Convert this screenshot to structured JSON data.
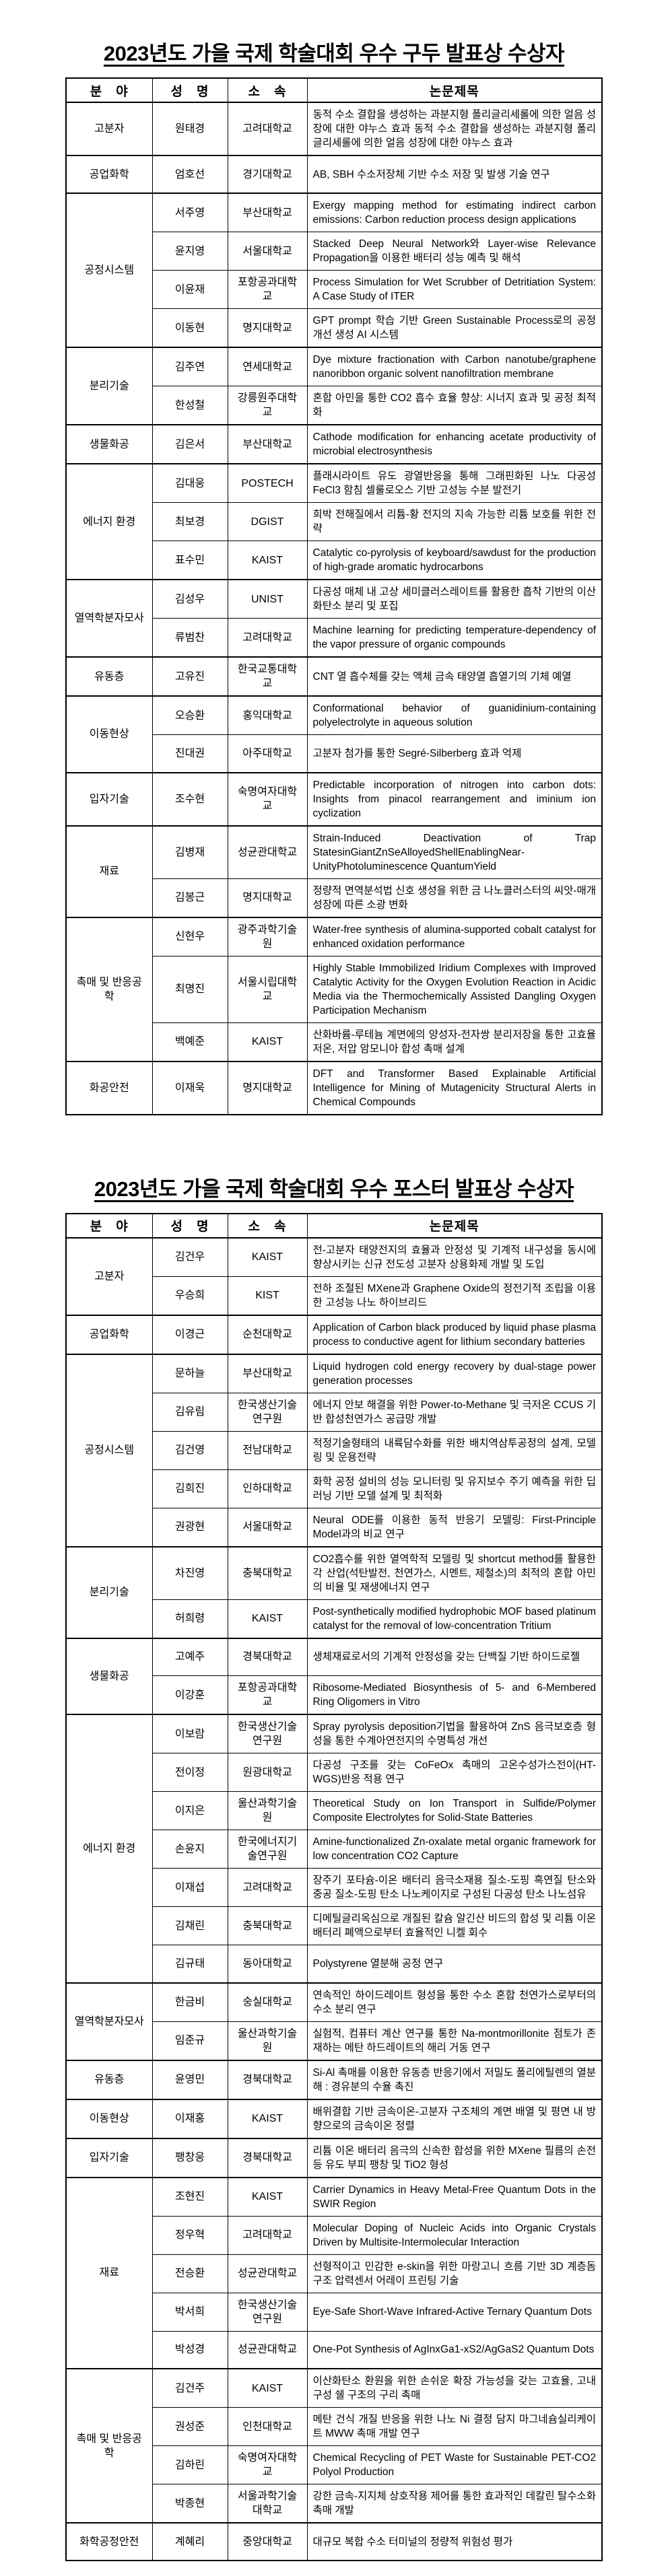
{
  "titles": {
    "oral": "2023년도 가을 국제 학술대회 우수 구두 발표상 수상자",
    "poster": "2023년도 가을 국제 학술대회 우수 포스터 발표상 수상자"
  },
  "headers": {
    "field": "분　야",
    "name": "성　명",
    "affiliation": "소　속",
    "title": "논문제목"
  },
  "oral_table": {
    "groups": [
      {
        "field": "고분자",
        "rows": [
          {
            "name": "원태경",
            "affiliation": "고려대학교",
            "title": "동적 수소 결합을 생성하는 과분지형 폴리글리세롤에 의한 얼음 성장에 대한 야누스 효과 동적 수소 결합을 생성하는 과분지형 폴리글리세롤에 의한 얼음 성장에 대한 야누스 효과"
          }
        ]
      },
      {
        "field": "공업화학",
        "rows": [
          {
            "name": "엄호선",
            "affiliation": "경기대학교",
            "title": "AB, SBH 수소저장체 기반 수소 저장 및 발생 기술 연구"
          }
        ]
      },
      {
        "field": "공정시스템",
        "rows": [
          {
            "name": "서주영",
            "affiliation": "부산대학교",
            "title": "Exergy mapping method for estimating indirect carbon emissions: Carbon reduction process design applications"
          },
          {
            "name": "윤지영",
            "affiliation": "서울대학교",
            "title": "Stacked Deep Neural Network와 Layer-wise Relevance Propagation을 이용한 배터리 성능 예측 및 해석"
          },
          {
            "name": "이윤재",
            "affiliation": "포항공과대학교",
            "title": "Process Simulation for Wet Scrubber of Detritiation System: A Case Study of ITER"
          },
          {
            "name": "이동현",
            "affiliation": "명지대학교",
            "title": "GPT prompt 학습 기반 Green Sustainable Process로의 공정 개선 생성 AI 시스템"
          }
        ]
      },
      {
        "field": "분리기술",
        "rows": [
          {
            "name": "김주연",
            "affiliation": "연세대학교",
            "title": "Dye mixture fractionation with Carbon nanotube/graphene nanoribbon organic solvent nanofiltration membrane"
          },
          {
            "name": "한성철",
            "affiliation": "강릉원주대학교",
            "title": "혼합 아민을 통한 CO2 흡수 효율 향상: 시너지 효과 및 공정 최적화"
          }
        ]
      },
      {
        "field": "생물화공",
        "rows": [
          {
            "name": "김은서",
            "affiliation": "부산대학교",
            "title": "Cathode modification for enhancing acetate productivity of microbial electrosynthesis"
          }
        ]
      },
      {
        "field": "에너지 환경",
        "rows": [
          {
            "name": "김대웅",
            "affiliation": "POSTECH",
            "title": "플래시라이트 유도 광열반응을 통해 그래핀화된 나노 다공성 FeCl3 함침 셀룰로오스 기반 고성능 수분 발전기"
          },
          {
            "name": "최보경",
            "affiliation": "DGIST",
            "title": "희박 전해질에서 리튬-황 전지의 지속 가능한 리튬 보호를 위한 전략"
          },
          {
            "name": "표수민",
            "affiliation": "KAIST",
            "title": "Catalytic co-pyrolysis of keyboard/sawdust for the production of high-grade aromatic hydrocarbons"
          }
        ]
      },
      {
        "field": "열역학분자모사",
        "rows": [
          {
            "name": "김성우",
            "affiliation": "UNIST",
            "title": "다공성 매체 내 고상 세미클러스레이트를 활용한 흡착 기반의 이산화탄소 분리 및 포집"
          },
          {
            "name": "류범찬",
            "affiliation": "고려대학교",
            "title": "Machine learning for predicting temperature-dependency of the vapor pressure of organic compounds"
          }
        ]
      },
      {
        "field": "유동층",
        "rows": [
          {
            "name": "고유진",
            "affiliation": "한국교통대학교",
            "title": "CNT 열 흡수체를 갖는 액체 금속 태양열 흡열기의 기체 예열"
          }
        ]
      },
      {
        "field": "이동현상",
        "rows": [
          {
            "name": "오승환",
            "affiliation": "홍익대학교",
            "title": "Conformational behavior of guanidinium-containing polyelectrolyte in aqueous solution"
          },
          {
            "name": "진대권",
            "affiliation": "아주대학교",
            "title": "고분자 첨가를 통한 Segré-Silberberg 효과 억제"
          }
        ]
      },
      {
        "field": "입자기술",
        "rows": [
          {
            "name": "조수현",
            "affiliation": "숙명여자대학교",
            "title": "Predictable incorporation of nitrogen into carbon dots: Insights from pinacol rearrangement and iminium ion cyclization"
          }
        ]
      },
      {
        "field": "재료",
        "rows": [
          {
            "name": "김병재",
            "affiliation": "성균관대학교",
            "title": "Strain-Induced Deactivation of Trap StatesinGiantZnSeAlloyedShellEnablingNear-UnityPhotoluminescence QuantumYield"
          },
          {
            "name": "김봉근",
            "affiliation": "명지대학교",
            "title": "정량적 면역분석법 신호 생성을 위한 금 나노클러스터의 씨앗-매개 성장에 따른 소광 변화"
          }
        ]
      },
      {
        "field": "촉매 및 반응공학",
        "rows": [
          {
            "name": "신현우",
            "affiliation": "광주과학기술원",
            "title": "Water-free synthesis of alumina-supported cobalt catalyst for enhanced oxidation performance"
          },
          {
            "name": "최명진",
            "affiliation": "서울시립대학교",
            "title": "Highly Stable Immobilized Iridium Complexes with Improved Catalytic Activity for the Oxygen Evolution Reaction in Acidic Media via the Thermochemically Assisted Dangling Oxygen Participation Mechanism"
          },
          {
            "name": "백예준",
            "affiliation": "KAIST",
            "title": "산화바륨-루테늄 계면에의 양성자-전자쌍 분리저장을 통한 고효율 저온, 저압 암모니아 합성 촉매 설계"
          }
        ]
      },
      {
        "field": "화공안전",
        "rows": [
          {
            "name": "이재욱",
            "affiliation": "명지대학교",
            "title": "DFT and Transformer Based Explainable Artificial Intelligence for Mining of Mutagenicity Structural Alerts in Chemical Compounds"
          }
        ]
      }
    ]
  },
  "poster_table": {
    "groups": [
      {
        "field": "고분자",
        "rows": [
          {
            "name": "김건우",
            "affiliation": "KAIST",
            "title": "전-고분자 태양전지의 효율과 안정성 및 기계적 내구성을 동시에 향상시키는 신규 전도성 고분자 상용화제 개발 및 도입"
          },
          {
            "name": "우승희",
            "affiliation": "KIST",
            "title": "전하 조절된 MXene과 Graphene Oxide의 정전기적 조립을 이용한 고성능 나노 하이브리드"
          }
        ]
      },
      {
        "field": "공업화학",
        "rows": [
          {
            "name": "이경근",
            "affiliation": "순천대학교",
            "title": "Application of Carbon black produced by liquid phase plasma process to conductive agent for lithium secondary batteries"
          }
        ]
      },
      {
        "field": "공정시스템",
        "rows": [
          {
            "name": "문하늘",
            "affiliation": "부산대학교",
            "title": "Liquid hydrogen cold energy recovery by dual-stage power generation processes"
          },
          {
            "name": "김유림",
            "affiliation": "한국생산기술연구원",
            "title": "에너지 안보 해결을 위한 Power-to-Methane 및 극저온 CCUS 기반 합성천연가스 공급망 개발"
          },
          {
            "name": "김건영",
            "affiliation": "전남대학교",
            "title": "적정기술형태의 내륙담수화를 위한 배치역삼투공정의 설계, 모델링 및 운용전략"
          },
          {
            "name": "김희진",
            "affiliation": "인하대학교",
            "title": "화학 공정 설비의 성능 모니터링 및 유지보수 주기 예측을 위한 딥러닝 기반 모델 설계 및 최적화"
          },
          {
            "name": "권광현",
            "affiliation": "서울대학교",
            "title": "Neural ODE를 이용한 동적 반응기 모델링: First-Principle Model과의 비교 연구"
          }
        ]
      },
      {
        "field": "분리기술",
        "rows": [
          {
            "name": "차진영",
            "affiliation": "충북대학교",
            "title": "CO2흡수를 위한 열역학적 모델링 및 shortcut method를 활용한 각 산업(석탄발전, 천연가스, 시멘트, 제철소)의 최적의 혼합 아민의 비율 및 재생에너지 연구"
          },
          {
            "name": "허희령",
            "affiliation": "KAIST",
            "title": "Post-synthetically modified hydrophobic MOF based platinum catalyst for the removal of low-concentration Tritium"
          }
        ]
      },
      {
        "field": "생물화공",
        "rows": [
          {
            "name": "고예주",
            "affiliation": "경북대학교",
            "title": "생체재료로서의 기계적 안정성을 갖는 단백질 기반 하이드로젤"
          },
          {
            "name": "이강훈",
            "affiliation": "포항공과대학교",
            "title": "Ribosome-Mediated Biosynthesis of 5- and 6-Membered Ring Oligomers in Vitro"
          }
        ]
      },
      {
        "field": "에너지 환경",
        "rows": [
          {
            "name": "이보람",
            "affiliation": "한국생산기술연구원",
            "title": "Spray pyrolysis deposition기법을 활용하여 ZnS 음극보호층 형성을 통한 수계아연전지의 수명특성 개선"
          },
          {
            "name": "전이정",
            "affiliation": "원광대학교",
            "title": "다공성 구조를 갖는 CoFeOx 촉매의 고온수성가스전이(HT-WGS)반응 적용 연구"
          },
          {
            "name": "이지은",
            "affiliation": "울산과학기술원",
            "title": "Theoretical Study on Ion Transport in Sulfide/Polymer Composite Electrolytes for Solid-State Batteries"
          },
          {
            "name": "손윤지",
            "affiliation": "한국에너지기술연구원",
            "title": "Amine-functionalized Zn-oxalate metal organic framework for low concentration CO2 Capture"
          },
          {
            "name": "이재섭",
            "affiliation": "고려대학교",
            "title": "장주기 포타슘-이온 배터리 음극소재용 질소-도핑 흑연질 탄소와 중공 질소-도핑 탄소 나노케이지로 구성된 다공성 탄소 나노섬유"
          },
          {
            "name": "김채린",
            "affiliation": "충북대학교",
            "title": "디메틸글리옥심으로 개질된 칼슘 알긴산 비드의 합성 및 리튬 이온 배터리 폐액으로부터 효율적인 니켈 회수"
          },
          {
            "name": "김규태",
            "affiliation": "동아대학교",
            "title": "Polystyrene 열분해 공정 연구"
          }
        ]
      },
      {
        "field": "열역학분자모사",
        "rows": [
          {
            "name": "한금비",
            "affiliation": "숭실대학교",
            "title": "연속적인 하이드레이트 형성을 통한 수소 혼합 천연가스로부터의 수소 분리 연구"
          },
          {
            "name": "임준규",
            "affiliation": "울산과학기술원",
            "title": "실험적, 컴퓨터 계산 연구를 통한 Na-montmorillonite 점토가 존재하는 메탄 하드레이트의 해리 거동 연구"
          }
        ]
      },
      {
        "field": "유동층",
        "rows": [
          {
            "name": "윤영민",
            "affiliation": "경북대학교",
            "title": "Si-Al 촉매를 이용한 유동층 반응기에서 저밀도 폴리에틸렌의 열분해 : 경유분의 수율 촉진"
          }
        ]
      },
      {
        "field": "이동현상",
        "rows": [
          {
            "name": "이재홍",
            "affiliation": "KAIST",
            "title": "배위결합 기반 금속이온-고분자 구조체의 계면 배열 및 평면 내 방향으로의 금속이온 정렬"
          }
        ]
      },
      {
        "field": "입자기술",
        "rows": [
          {
            "name": "팽창웅",
            "affiliation": "경북대학교",
            "title": "리튬 이온 배터리 음극의 신속한 합성을 위한 MXene 필름의 손전등 유도 부피 팽창 및 TiO2 형성"
          }
        ]
      },
      {
        "field": "재료",
        "rows": [
          {
            "name": "조현진",
            "affiliation": "KAIST",
            "title": "Carrier Dynamics in Heavy Metal-Free Quantum Dots in the SWIR Region"
          },
          {
            "name": "정우혁",
            "affiliation": "고려대학교",
            "title": "Molecular Doping of Nucleic Acids into Organic Crystals Driven by Multisite-Intermolecular Interaction"
          },
          {
            "name": "전승환",
            "affiliation": "성균관대학교",
            "title": "선형적이고 민감한 e-skin을 위한 마랑고니 흐름 기반 3D 계층돔 구조 압력센서 어레이 프린팅 기술"
          },
          {
            "name": "박서희",
            "affiliation": "한국생산기술연구원",
            "title": "Eye-Safe Short-Wave Infrared-Active Ternary Quantum Dots"
          },
          {
            "name": "박성경",
            "affiliation": "성균관대학교",
            "title": "One-Pot Synthesis of AgInxGa1-xS2/AgGaS2 Quantum Dots"
          }
        ]
      },
      {
        "field": "촉매 및 반응공학",
        "rows": [
          {
            "name": "김건주",
            "affiliation": "KAIST",
            "title": "이산화탄소 환원을 위한 손쉬운 확장 가능성을 갖는 고효율, 고내구성 쉘 구조의 구리 촉매"
          },
          {
            "name": "권성준",
            "affiliation": "인천대학교",
            "title": "메탄 건식 개질 반응을 위한 나노 Ni 결정 담지 마그네슘실리케이트 MWW 촉매 개발 연구"
          },
          {
            "name": "김하린",
            "affiliation": "숙명여자대학교",
            "title": "Chemical Recycling of PET Waste for Sustainable PET-CO2 Polyol Production"
          },
          {
            "name": "박종현",
            "affiliation": "서울과학기술대학교",
            "title": "강한 금속-지지체 상호작용 제어를 통한 효과적인 데칼린 탈수소화 촉매 개발"
          }
        ]
      },
      {
        "field": "화학공정안전",
        "rows": [
          {
            "name": "계혜리",
            "affiliation": "중앙대학교",
            "title": "대규모 복합 수소 터미널의 정량적 위험성 평가"
          }
        ]
      }
    ]
  }
}
